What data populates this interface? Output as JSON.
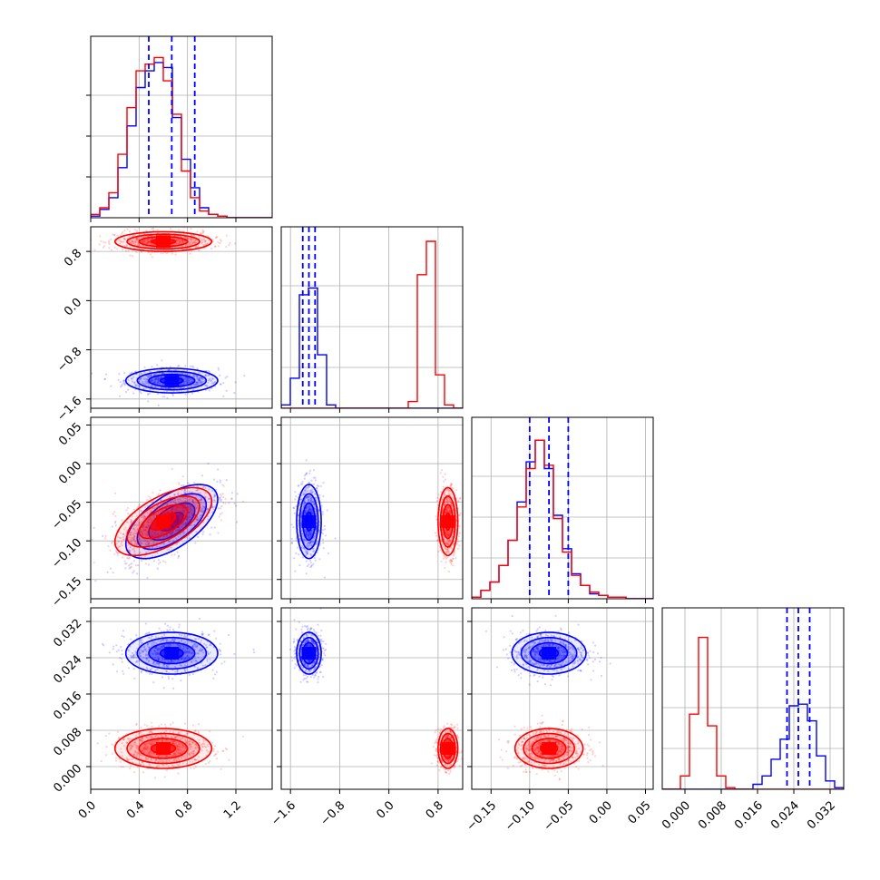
{
  "colors": {
    "series_a": "#0000ff",
    "series_b": "#ff0000",
    "grid": "#b0b0b0",
    "frame": "#000000"
  },
  "chart_data": {
    "type": "corner",
    "grid": true,
    "parameters": 4,
    "axes": [
      {
        "lim": [
          0.0,
          1.5
        ],
        "ticks": [
          0.0,
          0.4,
          0.8,
          1.2
        ],
        "tick_labels": [
          "0.0",
          "0.4",
          "0.8",
          "1.2"
        ]
      },
      {
        "lim": [
          -1.75,
          1.2
        ],
        "ticks": [
          -1.6,
          -0.8,
          0.0,
          0.8
        ],
        "tick_labels": [
          "−1.6",
          "−0.8",
          "0.0",
          "0.8"
        ]
      },
      {
        "lim": [
          -0.175,
          0.06
        ],
        "ticks": [
          -0.15,
          -0.1,
          -0.05,
          0.0,
          0.05
        ],
        "tick_labels": [
          "−0.15",
          "−0.10",
          "−0.05",
          "0.00",
          "0.05"
        ]
      },
      {
        "lim": [
          -0.005,
          0.035
        ],
        "ticks": [
          0.0,
          0.008,
          0.016,
          0.024,
          0.032
        ],
        "tick_labels": [
          "0.000",
          "0.008",
          "0.016",
          "0.024",
          "0.032"
        ]
      }
    ],
    "series": [
      {
        "color": "#0000ff",
        "mean": [
          0.67,
          -1.3,
          -0.075,
          0.025
        ],
        "sd": [
          0.19,
          0.1,
          0.024,
          0.0023
        ],
        "corr_01": 0.0,
        "corr_02": 0.6,
        "corr_03": 0.0,
        "corr_12": 0.0,
        "corr_13": 0.0,
        "corr_23": 0.0,
        "quantiles": [
          [
            0.48,
            0.67,
            0.86
          ],
          [
            -1.4,
            -1.3,
            -1.2
          ],
          [
            -0.1,
            -0.075,
            -0.05
          ],
          [
            0.0225,
            0.025,
            0.0275
          ]
        ],
        "hist": [
          [
            0.01,
            0.05,
            0.12,
            0.3,
            0.55,
            0.78,
            0.88,
            0.93,
            0.9,
            0.6,
            0.35,
            0.18,
            0.06,
            0.02,
            0.01,
            0,
            0,
            0,
            0,
            0
          ],
          [
            0.02,
            0.18,
            0.68,
            0.72,
            0.32,
            0.02,
            0,
            0,
            0,
            0,
            0,
            0,
            0,
            0,
            0,
            0,
            0,
            0,
            0,
            0
          ],
          [
            0.01,
            0.05,
            0.1,
            0.2,
            0.35,
            0.58,
            0.82,
            0.95,
            0.78,
            0.5,
            0.3,
            0.15,
            0.08,
            0.03,
            0.02,
            0.01,
            0.01,
            0,
            0,
            0
          ],
          [
            0,
            0,
            0,
            0,
            0,
            0,
            0,
            0,
            0,
            0,
            0.03,
            0.08,
            0.18,
            0.3,
            0.5,
            0.51,
            0.41,
            0.2,
            0.05,
            0.01
          ]
        ]
      },
      {
        "color": "#ff0000",
        "mean": [
          0.6,
          0.96,
          -0.075,
          0.004
        ],
        "sd": [
          0.2,
          0.08,
          0.022,
          0.0022
        ],
        "corr_01": 0.0,
        "corr_02": 0.6,
        "corr_03": 0.0,
        "corr_12": 0.0,
        "corr_13": 0.0,
        "corr_23": 0.0,
        "hist": [
          [
            0.02,
            0.06,
            0.15,
            0.38,
            0.66,
            0.88,
            0.92,
            0.96,
            0.82,
            0.62,
            0.28,
            0.12,
            0.04,
            0.02,
            0.01,
            0,
            0,
            0,
            0,
            0
          ],
          [
            0,
            0,
            0,
            0,
            0,
            0,
            0,
            0,
            0,
            0,
            0,
            0,
            0,
            0,
            0.04,
            0.8,
            1.0,
            0.2,
            0.02,
            0
          ],
          [
            0.01,
            0.05,
            0.1,
            0.2,
            0.35,
            0.55,
            0.78,
            0.95,
            0.8,
            0.48,
            0.28,
            0.14,
            0.08,
            0.04,
            0.02,
            0.01,
            0.01,
            0,
            0,
            0
          ],
          [
            0,
            0,
            0.08,
            0.45,
            0.91,
            0.38,
            0.08,
            0.01,
            0,
            0,
            0,
            0,
            0,
            0,
            0,
            0,
            0,
            0,
            0,
            0
          ]
        ]
      }
    ]
  }
}
